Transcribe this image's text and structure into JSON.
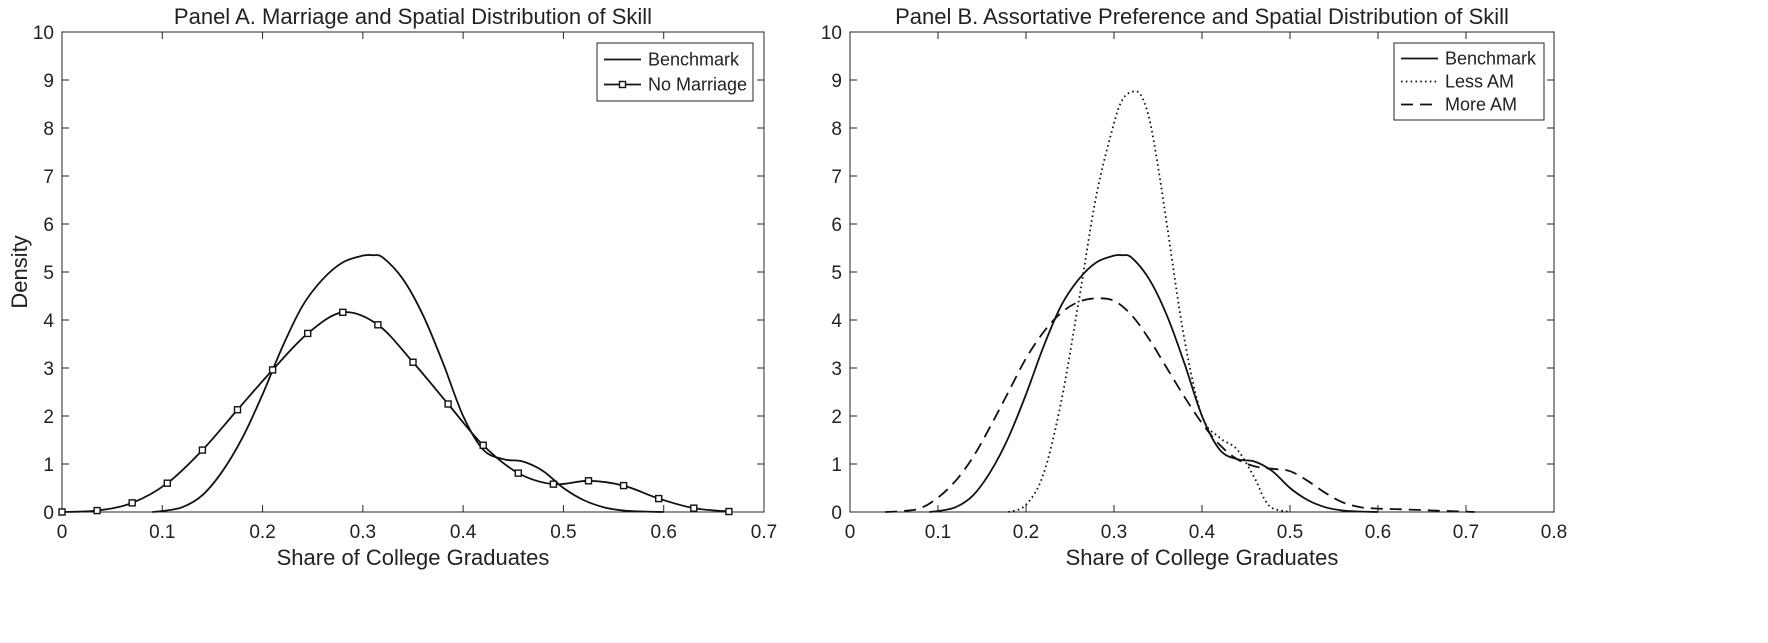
{
  "chart_data": [
    {
      "type": "line",
      "title": "Panel A. Marriage and Spatial Distribution of Skill",
      "xlabel": "Share of College Graduates",
      "ylabel": "Density",
      "xlim": [
        0,
        0.7
      ],
      "ylim": [
        0,
        10
      ],
      "xticks": [
        0,
        0.1,
        0.2,
        0.3,
        0.4,
        0.5,
        0.6,
        0.7
      ],
      "yticks": [
        0,
        1,
        2,
        3,
        4,
        5,
        6,
        7,
        8,
        9,
        10
      ],
      "grid": false,
      "legend_position": "top-right",
      "series": [
        {
          "name": "Benchmark",
          "style": "solid",
          "marker": "none",
          "x": [
            0.09,
            0.1,
            0.12,
            0.14,
            0.16,
            0.18,
            0.2,
            0.22,
            0.24,
            0.26,
            0.28,
            0.3,
            0.31,
            0.32,
            0.34,
            0.36,
            0.38,
            0.4,
            0.42,
            0.44,
            0.46,
            0.48,
            0.5,
            0.52,
            0.54,
            0.56,
            0.58,
            0.6
          ],
          "y": [
            0.0,
            0.02,
            0.1,
            0.35,
            0.85,
            1.55,
            2.45,
            3.45,
            4.3,
            4.85,
            5.2,
            5.34,
            5.35,
            5.3,
            4.85,
            4.1,
            3.1,
            2.0,
            1.3,
            1.1,
            1.05,
            0.85,
            0.5,
            0.25,
            0.1,
            0.03,
            0.01,
            0.0
          ]
        },
        {
          "name": "No Marriage",
          "style": "solid",
          "marker": "square",
          "x": [
            0.0,
            0.035,
            0.07,
            0.105,
            0.14,
            0.175,
            0.21,
            0.245,
            0.28,
            0.315,
            0.35,
            0.385,
            0.42,
            0.455,
            0.49,
            0.525,
            0.56,
            0.595,
            0.63,
            0.665
          ],
          "y": [
            0.0,
            0.03,
            0.19,
            0.6,
            1.29,
            2.13,
            2.96,
            3.72,
            4.16,
            3.9,
            3.12,
            2.25,
            1.39,
            0.81,
            0.58,
            0.65,
            0.55,
            0.28,
            0.08,
            0.01
          ]
        }
      ]
    },
    {
      "type": "line",
      "title": "Panel B. Assortative Preference and Spatial Distribution of Skill",
      "xlabel": "Share of College Graduates",
      "ylabel": "",
      "xlim": [
        0,
        0.8
      ],
      "ylim": [
        0,
        10
      ],
      "xticks": [
        0,
        0.1,
        0.2,
        0.3,
        0.4,
        0.5,
        0.6,
        0.7,
        0.8
      ],
      "yticks": [
        0,
        1,
        2,
        3,
        4,
        5,
        6,
        7,
        8,
        9,
        10
      ],
      "grid": false,
      "legend_position": "top-right",
      "series": [
        {
          "name": "Benchmark",
          "style": "solid",
          "marker": "none",
          "x": [
            0.09,
            0.1,
            0.12,
            0.14,
            0.16,
            0.18,
            0.2,
            0.22,
            0.24,
            0.26,
            0.28,
            0.3,
            0.31,
            0.32,
            0.34,
            0.36,
            0.38,
            0.4,
            0.42,
            0.44,
            0.46,
            0.48,
            0.5,
            0.52,
            0.54,
            0.56,
            0.58,
            0.6
          ],
          "y": [
            0.0,
            0.02,
            0.1,
            0.35,
            0.85,
            1.55,
            2.45,
            3.45,
            4.3,
            4.85,
            5.2,
            5.34,
            5.35,
            5.3,
            4.85,
            4.1,
            3.1,
            2.0,
            1.3,
            1.1,
            1.05,
            0.85,
            0.5,
            0.25,
            0.1,
            0.03,
            0.01,
            0.0
          ]
        },
        {
          "name": "Less AM",
          "style": "dotted",
          "marker": "none",
          "x": [
            0.18,
            0.2,
            0.22,
            0.24,
            0.26,
            0.28,
            0.3,
            0.31,
            0.32,
            0.33,
            0.34,
            0.35,
            0.36,
            0.38,
            0.4,
            0.42,
            0.44,
            0.46,
            0.47,
            0.48,
            0.5
          ],
          "y": [
            0.0,
            0.15,
            0.8,
            2.3,
            4.4,
            6.6,
            8.1,
            8.6,
            8.75,
            8.7,
            8.2,
            7.2,
            6.0,
            3.6,
            2.0,
            1.55,
            1.3,
            0.7,
            0.3,
            0.08,
            0.0
          ]
        },
        {
          "name": "More AM",
          "style": "dashed",
          "marker": "none",
          "x": [
            0.04,
            0.06,
            0.08,
            0.1,
            0.12,
            0.14,
            0.16,
            0.18,
            0.2,
            0.22,
            0.24,
            0.26,
            0.28,
            0.3,
            0.32,
            0.34,
            0.36,
            0.38,
            0.4,
            0.42,
            0.44,
            0.46,
            0.48,
            0.5,
            0.52,
            0.54,
            0.56,
            0.58,
            0.6,
            0.62,
            0.65,
            0.68,
            0.71
          ],
          "y": [
            0.0,
            0.02,
            0.08,
            0.3,
            0.65,
            1.15,
            1.8,
            2.5,
            3.2,
            3.75,
            4.15,
            4.38,
            4.45,
            4.4,
            4.1,
            3.6,
            3.0,
            2.4,
            1.85,
            1.4,
            1.1,
            0.95,
            0.9,
            0.85,
            0.65,
            0.4,
            0.2,
            0.1,
            0.07,
            0.06,
            0.04,
            0.02,
            0.0
          ]
        }
      ]
    }
  ]
}
